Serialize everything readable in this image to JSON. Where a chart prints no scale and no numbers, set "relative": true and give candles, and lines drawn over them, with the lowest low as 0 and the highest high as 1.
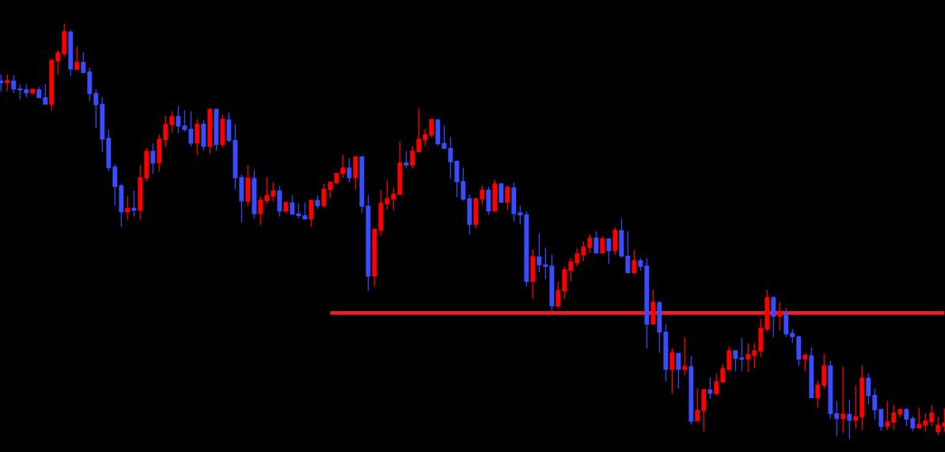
{
  "chart_data": {
    "type": "candlestick",
    "relative": true,
    "tick_labels": false,
    "categories": [
      null,
      null,
      null,
      null,
      null,
      null,
      null,
      null,
      null,
      null,
      null,
      null,
      null,
      null,
      null,
      null,
      null,
      null,
      null,
      null,
      null,
      null,
      null,
      null,
      null,
      null,
      null,
      null,
      null,
      null,
      null,
      null,
      null,
      null,
      null,
      null,
      null,
      null,
      null,
      null,
      null,
      null,
      null,
      null,
      null,
      null,
      null,
      null,
      null,
      null,
      null,
      null,
      null,
      null,
      null,
      null,
      null,
      null,
      null,
      null,
      null,
      null,
      null,
      null,
      null,
      null,
      null,
      null,
      null,
      null,
      null,
      null,
      null,
      null,
      null,
      null,
      null,
      null,
      null,
      null,
      null,
      null,
      null,
      null,
      null,
      null,
      null,
      null,
      null,
      null,
      null,
      null,
      null,
      null,
      null,
      null,
      null,
      null,
      null,
      null,
      null,
      null,
      null,
      null,
      null,
      null,
      null,
      null,
      null,
      null,
      null,
      null,
      null,
      null,
      null,
      null,
      null,
      null,
      null,
      null,
      null,
      null,
      null,
      null,
      null,
      null,
      null,
      null,
      null,
      null,
      null,
      null,
      null,
      null,
      null,
      null,
      null,
      null,
      null,
      null,
      null,
      null,
      null,
      null,
      null,
      null,
      null,
      null,
      null,
      null
    ],
    "series": [
      {
        "ohlc": [
          [
            0.862,
            0.878,
            0.837,
            0.858
          ],
          [
            0.858,
            0.878,
            0.838,
            0.863
          ],
          [
            0.862,
            0.876,
            0.833,
            0.843
          ],
          [
            0.843,
            0.853,
            0.818,
            0.841
          ],
          [
            0.841,
            0.853,
            0.823,
            0.834
          ],
          [
            0.833,
            0.843,
            0.831,
            0.842
          ],
          [
            0.841,
            0.848,
            0.822,
            0.822
          ],
          [
            0.822,
            0.855,
            0.806,
            0.806
          ],
          [
            0.806,
            0.914,
            0.791,
            0.912
          ],
          [
            0.911,
            0.937,
            0.877,
            0.93
          ],
          [
            0.928,
            1.0,
            0.921,
            0.981
          ],
          [
            0.98,
            0.985,
            0.875,
            0.891
          ],
          [
            0.89,
            0.945,
            0.889,
            0.907
          ],
          [
            0.907,
            0.931,
            0.882,
            0.882
          ],
          [
            0.884,
            0.895,
            0.814,
            0.832
          ],
          [
            0.832,
            0.842,
            0.749,
            0.805
          ],
          [
            0.806,
            0.823,
            0.692,
            0.722
          ],
          [
            0.724,
            0.745,
            0.646,
            0.654
          ],
          [
            0.655,
            0.662,
            0.562,
            0.608
          ],
          [
            0.61,
            0.615,
            0.511,
            0.547
          ],
          [
            0.547,
            0.585,
            0.528,
            0.556
          ],
          [
            0.556,
            0.598,
            0.536,
            0.551
          ],
          [
            0.551,
            0.659,
            0.528,
            0.63
          ],
          [
            0.629,
            0.701,
            0.62,
            0.693
          ],
          [
            0.693,
            0.712,
            0.639,
            0.665
          ],
          [
            0.665,
            0.733,
            0.644,
            0.722
          ],
          [
            0.721,
            0.779,
            0.703,
            0.758
          ],
          [
            0.757,
            0.789,
            0.738,
            0.777
          ],
          [
            0.777,
            0.802,
            0.736,
            0.754
          ],
          [
            0.754,
            0.792,
            0.74,
            0.745
          ],
          [
            0.746,
            0.789,
            0.705,
            0.713
          ],
          [
            0.713,
            0.77,
            0.684,
            0.758
          ],
          [
            0.758,
            0.768,
            0.694,
            0.705
          ],
          [
            0.705,
            0.796,
            0.688,
            0.794
          ],
          [
            0.794,
            0.796,
            0.694,
            0.709
          ],
          [
            0.709,
            0.781,
            0.702,
            0.77
          ],
          [
            0.769,
            0.787,
            0.715,
            0.719
          ],
          [
            0.719,
            0.758,
            0.602,
            0.629
          ],
          [
            0.63,
            0.636,
            0.522,
            0.574
          ],
          [
            0.573,
            0.659,
            0.562,
            0.629
          ],
          [
            0.628,
            0.648,
            0.532,
            0.543
          ],
          [
            0.543,
            0.584,
            0.515,
            0.575
          ],
          [
            0.574,
            0.632,
            0.566,
            0.587
          ],
          [
            0.585,
            0.619,
            0.572,
            0.598
          ],
          [
            0.598,
            0.61,
            0.536,
            0.549
          ],
          [
            0.549,
            0.573,
            0.545,
            0.57
          ],
          [
            0.569,
            0.587,
            0.542,
            0.542
          ],
          [
            0.542,
            0.568,
            0.532,
            0.538
          ],
          [
            0.538,
            0.57,
            0.53,
            0.53
          ],
          [
            0.53,
            0.577,
            0.511,
            0.575
          ],
          [
            0.575,
            0.587,
            0.555,
            0.562
          ],
          [
            0.562,
            0.615,
            0.557,
            0.602
          ],
          [
            0.601,
            0.619,
            0.58,
            0.619
          ],
          [
            0.617,
            0.64,
            0.614,
            0.64
          ],
          [
            0.639,
            0.684,
            0.629,
            0.653
          ],
          [
            0.653,
            0.676,
            0.618,
            0.629
          ],
          [
            0.629,
            0.68,
            0.602,
            0.68
          ],
          [
            0.68,
            0.682,
            0.545,
            0.561
          ],
          [
            0.561,
            0.587,
            0.357,
            0.393
          ],
          [
            0.393,
            0.509,
            0.368,
            0.505
          ],
          [
            0.503,
            0.6,
            0.49,
            0.568
          ],
          [
            0.566,
            0.623,
            0.553,
            0.579
          ],
          [
            0.578,
            0.606,
            0.551,
            0.59
          ],
          [
            0.589,
            0.716,
            0.589,
            0.665
          ],
          [
            0.665,
            0.693,
            0.652,
            0.66
          ],
          [
            0.66,
            0.705,
            0.652,
            0.693
          ],
          [
            0.692,
            0.796,
            0.69,
            0.722
          ],
          [
            0.721,
            0.747,
            0.705,
            0.733
          ],
          [
            0.732,
            0.77,
            0.726,
            0.77
          ],
          [
            0.769,
            0.771,
            0.707,
            0.711
          ],
          [
            0.712,
            0.754,
            0.7,
            0.7
          ],
          [
            0.7,
            0.728,
            0.627,
            0.668
          ],
          [
            0.669,
            0.67,
            0.583,
            0.62
          ],
          [
            0.62,
            0.653,
            0.574,
            0.578
          ],
          [
            0.579,
            0.589,
            0.493,
            0.517
          ],
          [
            0.517,
            0.581,
            0.507,
            0.579
          ],
          [
            0.578,
            0.61,
            0.564,
            0.6
          ],
          [
            0.6,
            0.608,
            0.54,
            0.549
          ],
          [
            0.549,
            0.625,
            0.549,
            0.615
          ],
          [
            0.615,
            0.615,
            0.57,
            0.57
          ],
          [
            0.57,
            0.611,
            0.552,
            0.606
          ],
          [
            0.605,
            0.617,
            0.524,
            0.543
          ],
          [
            0.545,
            0.562,
            0.517,
            0.54
          ],
          [
            0.54,
            0.549,
            0.368,
            0.38
          ],
          [
            0.38,
            0.457,
            0.338,
            0.44
          ],
          [
            0.439,
            0.495,
            0.402,
            0.42
          ],
          [
            0.42,
            0.461,
            0.385,
            0.416
          ],
          [
            0.417,
            0.444,
            0.308,
            0.321
          ],
          [
            0.321,
            0.379,
            0.316,
            0.358
          ],
          [
            0.357,
            0.415,
            0.338,
            0.408
          ],
          [
            0.406,
            0.436,
            0.38,
            0.427
          ],
          [
            0.425,
            0.459,
            0.416,
            0.446
          ],
          [
            0.444,
            0.476,
            0.429,
            0.463
          ],
          [
            0.462,
            0.493,
            0.448,
            0.484
          ],
          [
            0.484,
            0.501,
            0.448,
            0.448
          ],
          [
            0.448,
            0.488,
            0.446,
            0.482
          ],
          [
            0.482,
            0.484,
            0.423,
            0.454
          ],
          [
            0.454,
            0.51,
            0.444,
            0.503
          ],
          [
            0.502,
            0.53,
            0.437,
            0.441
          ],
          [
            0.441,
            0.501,
            0.399,
            0.401
          ],
          [
            0.401,
            0.455,
            0.397,
            0.43
          ],
          [
            0.43,
            0.436,
            0.406,
            0.416
          ],
          [
            0.417,
            0.436,
            0.218,
            0.277
          ],
          [
            0.277,
            0.36,
            0.277,
            0.33
          ],
          [
            0.329,
            0.333,
            0.208,
            0.258
          ],
          [
            0.258,
            0.276,
            0.14,
            0.168
          ],
          [
            0.168,
            0.219,
            0.11,
            0.208
          ],
          [
            0.207,
            0.207,
            0.122,
            0.168
          ],
          [
            0.168,
            0.246,
            0.155,
            0.175
          ],
          [
            0.175,
            0.2,
            0.035,
            0.044
          ],
          [
            0.044,
            0.122,
            0.044,
            0.07
          ],
          [
            0.069,
            0.12,
            0.018,
            0.12
          ],
          [
            0.119,
            0.149,
            0.097,
            0.111
          ],
          [
            0.11,
            0.156,
            0.105,
            0.139
          ],
          [
            0.138,
            0.181,
            0.136,
            0.17
          ],
          [
            0.168,
            0.223,
            0.166,
            0.213
          ],
          [
            0.213,
            0.213,
            0.164,
            0.195
          ],
          [
            0.196,
            0.244,
            0.164,
            0.193
          ],
          [
            0.193,
            0.231,
            0.162,
            0.204
          ],
          [
            0.202,
            0.232,
            0.171,
            0.213
          ],
          [
            0.212,
            0.291,
            0.198,
            0.267
          ],
          [
            0.265,
            0.36,
            0.26,
            0.341
          ],
          [
            0.341,
            0.345,
            0.246,
            0.296
          ],
          [
            0.296,
            0.33,
            0.262,
            0.307
          ],
          [
            0.303,
            0.316,
            0.246,
            0.254
          ],
          [
            0.255,
            0.265,
            0.232,
            0.247
          ],
          [
            0.247,
            0.249,
            0.177,
            0.193
          ],
          [
            0.193,
            0.208,
            0.164,
            0.202
          ],
          [
            0.201,
            0.221,
            0.1,
            0.1
          ],
          [
            0.1,
            0.141,
            0.076,
            0.131
          ],
          [
            0.13,
            0.206,
            0.122,
            0.177
          ],
          [
            0.177,
            0.189,
            0.05,
            0.062
          ],
          [
            0.062,
            0.093,
            0.008,
            0.05
          ],
          [
            0.05,
            0.175,
            0.015,
            0.061
          ],
          [
            0.06,
            0.095,
            0.0,
            0.046
          ],
          [
            0.046,
            0.13,
            0.025,
            0.055
          ],
          [
            0.054,
            0.177,
            0.023,
            0.147
          ],
          [
            0.147,
            0.158,
            0.084,
            0.105
          ],
          [
            0.106,
            0.122,
            0.048,
            0.071
          ],
          [
            0.072,
            0.074,
            0.021,
            0.031
          ],
          [
            0.031,
            0.093,
            0.023,
            0.042
          ],
          [
            0.041,
            0.084,
            0.023,
            0.063
          ],
          [
            0.061,
            0.072,
            0.053,
            0.072
          ],
          [
            0.072,
            0.076,
            0.032,
            0.048
          ],
          [
            0.05,
            0.055,
            0.019,
            0.027
          ],
          [
            0.027,
            0.076,
            0.027,
            0.036
          ],
          [
            0.034,
            0.063,
            0.019,
            0.044
          ],
          [
            0.042,
            0.084,
            0.032,
            0.063
          ],
          [
            0.018,
            0.055,
            0.01,
            0.034
          ],
          [
            0.032,
            0.074,
            0.018,
            0.039
          ]
        ],
        "colors": [
          "#3a4cff",
          "#ff0000",
          "#3a4cff",
          "#3a4cff",
          "#3a4cff",
          "#ff0000",
          "#3a4cff",
          "#3a4cff",
          "#ff0000",
          "#ff0000",
          "#ff0000",
          "#3a4cff",
          "#ff0000",
          "#3a4cff",
          "#3a4cff",
          "#3a4cff",
          "#3a4cff",
          "#3a4cff",
          "#3a4cff",
          "#3a4cff",
          "#ff0000",
          "#3a4cff",
          "#ff0000",
          "#ff0000",
          "#3a4cff",
          "#ff0000",
          "#ff0000",
          "#ff0000",
          "#3a4cff",
          "#3a4cff",
          "#3a4cff",
          "#ff0000",
          "#3a4cff",
          "#ff0000",
          "#3a4cff",
          "#ff0000",
          "#3a4cff",
          "#3a4cff",
          "#3a4cff",
          "#ff0000",
          "#3a4cff",
          "#ff0000",
          "#ff0000",
          "#ff0000",
          "#3a4cff",
          "#ff0000",
          "#3a4cff",
          "#3a4cff",
          "#3a4cff",
          "#ff0000",
          "#3a4cff",
          "#ff0000",
          "#ff0000",
          "#ff0000",
          "#ff0000",
          "#3a4cff",
          "#ff0000",
          "#3a4cff",
          "#3a4cff",
          "#ff0000",
          "#ff0000",
          "#ff0000",
          "#ff0000",
          "#ff0000",
          "#3a4cff",
          "#ff0000",
          "#ff0000",
          "#ff0000",
          "#ff0000",
          "#3a4cff",
          "#3a4cff",
          "#3a4cff",
          "#3a4cff",
          "#3a4cff",
          "#3a4cff",
          "#ff0000",
          "#ff0000",
          "#3a4cff",
          "#ff0000",
          "#3a4cff",
          "#ff0000",
          "#3a4cff",
          "#3a4cff",
          "#3a4cff",
          "#ff0000",
          "#3a4cff",
          "#3a4cff",
          "#3a4cff",
          "#ff0000",
          "#ff0000",
          "#ff0000",
          "#ff0000",
          "#ff0000",
          "#ff0000",
          "#3a4cff",
          "#ff0000",
          "#3a4cff",
          "#ff0000",
          "#3a4cff",
          "#3a4cff",
          "#ff0000",
          "#3a4cff",
          "#3a4cff",
          "#ff0000",
          "#3a4cff",
          "#3a4cff",
          "#ff0000",
          "#3a4cff",
          "#ff0000",
          "#3a4cff",
          "#ff0000",
          "#ff0000",
          "#3a4cff",
          "#ff0000",
          "#ff0000",
          "#ff0000",
          "#3a4cff",
          "#3a4cff",
          "#ff0000",
          "#ff0000",
          "#ff0000",
          "#ff0000",
          "#3a4cff",
          "#ff0000",
          "#3a4cff",
          "#3a4cff",
          "#3a4cff",
          "#ff0000",
          "#3a4cff",
          "#ff0000",
          "#ff0000",
          "#3a4cff",
          "#3a4cff",
          "#ff0000",
          "#3a4cff",
          "#ff0000",
          "#ff0000",
          "#3a4cff",
          "#3a4cff",
          "#3a4cff",
          "#ff0000",
          "#ff0000",
          "#ff0000",
          "#3a4cff",
          "#3a4cff",
          "#ff0000",
          "#ff0000",
          "#ff0000",
          "#ff0000",
          "#ff0000"
        ]
      },
      {
        "type": "line",
        "color": "#ee1c25",
        "values": [
          null,
          null,
          null,
          null,
          null,
          null,
          null,
          null,
          null,
          null,
          null,
          null,
          null,
          null,
          null,
          null,
          null,
          null,
          null,
          null,
          null,
          null,
          null,
          null,
          null,
          null,
          null,
          null,
          null,
          null,
          null,
          null,
          null,
          null,
          null,
          null,
          null,
          null,
          null,
          null,
          null,
          null,
          null,
          null,
          null,
          null,
          null,
          null,
          null,
          null,
          null,
          null,
          0.304,
          0.304,
          0.304,
          0.304,
          0.304,
          0.304,
          0.304,
          0.304,
          0.304,
          0.304,
          0.304,
          0.304,
          0.304,
          0.304,
          0.304,
          0.304,
          0.304,
          0.304,
          0.304,
          0.304,
          0.304,
          0.304,
          0.304,
          0.304,
          0.304,
          0.304,
          0.304,
          0.304,
          0.304,
          0.304,
          0.304,
          0.304,
          0.304,
          0.304,
          0.304,
          0.304,
          0.304,
          0.304,
          0.304,
          0.304,
          0.304,
          0.304,
          0.304,
          0.304,
          0.304,
          0.304,
          0.304,
          0.304,
          0.304,
          0.304,
          0.304,
          0.304,
          0.304,
          0.304,
          0.304,
          0.304,
          0.304,
          0.304,
          0.304,
          0.304,
          0.304,
          0.304,
          0.304,
          0.304,
          0.304,
          0.304,
          0.304,
          0.304,
          0.304,
          0.304,
          0.304,
          0.304,
          0.304,
          0.304,
          0.304,
          0.304,
          0.304,
          0.304,
          0.304,
          0.304,
          0.304,
          0.304,
          0.304,
          0.304,
          0.304,
          0.304,
          0.304,
          0.304,
          0.304,
          0.304,
          0.304,
          0.304,
          0.304,
          0.304,
          0.304,
          0.304,
          0.304,
          0.304
        ]
      }
    ]
  }
}
